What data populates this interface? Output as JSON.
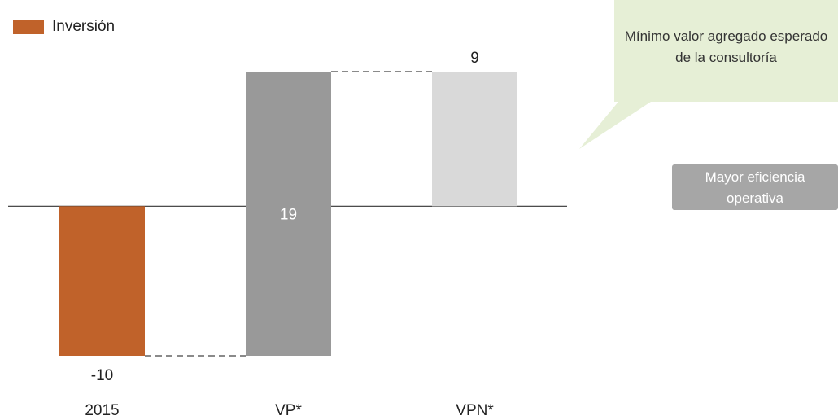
{
  "chart_data": {
    "type": "waterfall",
    "categories": [
      "2015",
      "VP*",
      "VPN*"
    ],
    "values": [
      -10,
      19,
      9
    ],
    "colors": [
      "#c0622a",
      "#999999",
      "#d9d9d9"
    ],
    "totals": [
      false,
      false,
      true
    ],
    "legend": [
      {
        "name": "Inversión",
        "color": "#c0622a"
      }
    ],
    "annotations": [
      "Mínimo valor agregado esperado de la consultoría",
      "Mayor eficiencia operativa"
    ]
  }
}
